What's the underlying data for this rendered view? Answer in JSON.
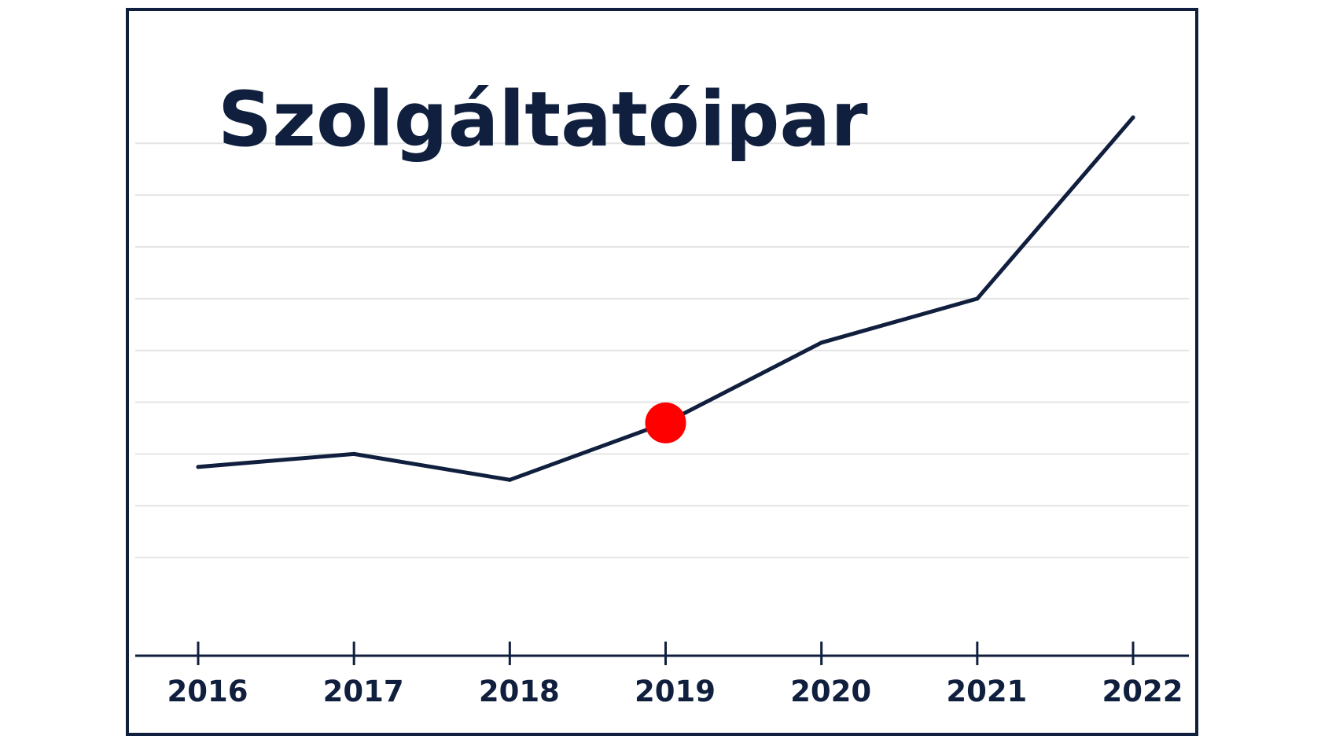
{
  "chart_data": {
    "type": "line",
    "title": "Szolgáltatóipar",
    "categories": [
      "2016",
      "2017",
      "2018",
      "2019",
      "2020",
      "2021",
      "2022"
    ],
    "x": [
      2016,
      2017,
      2018,
      2019,
      2020,
      2021,
      2022
    ],
    "series": [
      {
        "values": [
          1.75,
          2.0,
          1.5,
          2.6,
          4.15,
          5.0,
          8.5
        ]
      }
    ],
    "ylim": [
      -0.5,
      9.25
    ],
    "grid": true,
    "gridlines_y": [
      0,
      1,
      2,
      3,
      4,
      5,
      6,
      7,
      8
    ],
    "highlight_point": {
      "x": 2019,
      "y": 2.6,
      "color": "#ff0000"
    },
    "colors": {
      "line": "#0f1f3d",
      "axis": "#0f1f3d",
      "grid": "#e4e4e4",
      "text": "#0f1f3d",
      "highlight": "#ff0000"
    }
  }
}
